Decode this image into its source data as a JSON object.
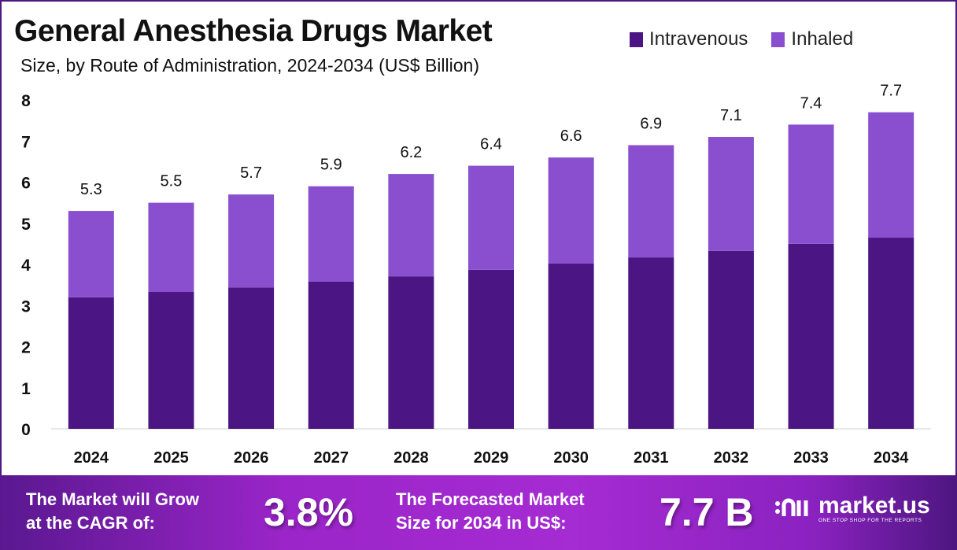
{
  "chart_data": {
    "type": "bar",
    "stacked": true,
    "title": "General Anesthesia Drugs Market",
    "subtitle": "Size, by Route of Administration, 2024-2034 (US$ Billion)",
    "xlabel": "",
    "ylabel": "",
    "categories": [
      "2024",
      "2025",
      "2026",
      "2027",
      "2028",
      "2029",
      "2030",
      "2031",
      "2032",
      "2033",
      "2034"
    ],
    "series": [
      {
        "name": "Intravenous",
        "color": "#4b1583",
        "values": [
          3.2,
          3.33,
          3.44,
          3.58,
          3.71,
          3.87,
          4.02,
          4.17,
          4.33,
          4.5,
          4.65
        ]
      },
      {
        "name": "Inhaled",
        "color": "#8a4fcf",
        "values": [
          2.1,
          2.17,
          2.26,
          2.32,
          2.49,
          2.53,
          2.58,
          2.73,
          2.77,
          2.9,
          3.05
        ]
      }
    ],
    "totals": [
      "5.3",
      "5.5",
      "5.7",
      "5.9",
      "6.2",
      "6.4",
      "6.6",
      "6.9",
      "7.1",
      "7.4",
      "7.7"
    ],
    "ylim": [
      0,
      8
    ],
    "yticks": [
      "0",
      "1",
      "2",
      "3",
      "4",
      "5",
      "6",
      "7",
      "8"
    ],
    "grid": false,
    "legend": "top-right"
  },
  "banner": {
    "cagr_label_line1": "The Market will Grow",
    "cagr_label_line2": "at the CAGR of:",
    "cagr_value": "3.8%",
    "forecast_label_line1": "The Forecasted Market",
    "forecast_label_line2": "Size for 2034 in US$:",
    "forecast_value": "7.7 B",
    "logo_name": "market.us",
    "logo_tagline": "ONE STOP SHOP FOR THE REPORTS"
  }
}
